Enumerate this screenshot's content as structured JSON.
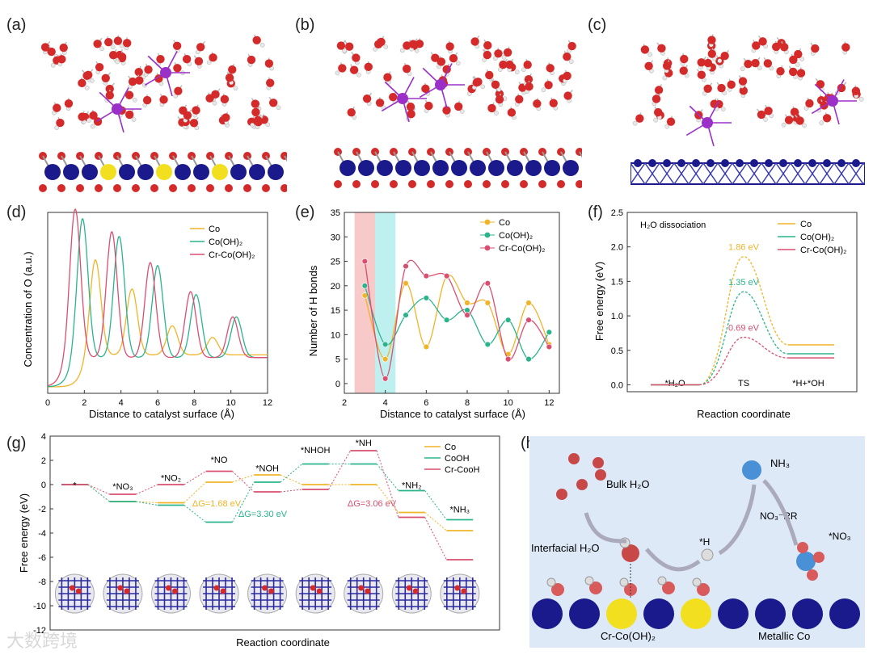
{
  "panels": {
    "a": {
      "label": "(a)"
    },
    "b": {
      "label": "(b)"
    },
    "c": {
      "label": "(c)"
    },
    "d": {
      "label": "(d)"
    },
    "e": {
      "label": "(e)"
    },
    "f": {
      "label": "(f)"
    },
    "g": {
      "label": "(g)"
    },
    "h": {
      "label": "(h)"
    }
  },
  "colors": {
    "co": "#f0b429",
    "coOH": "#2bb48c",
    "crcoOH": "#d94f70",
    "water_O": "#d42a2a",
    "cr_atom": "#9b30c8",
    "co_atom": "#1a1a8c",
    "yellow": "#f2e020",
    "bg_h": "#dde9f7"
  },
  "chart_data": [
    {
      "id": "d",
      "type": "line",
      "xlabel": "Distance to catalyst surface (Å)",
      "ylabel": "Concentration of O (a.u.)",
      "xlim": [
        0,
        12
      ],
      "xticks": [
        0,
        2,
        4,
        6,
        8,
        10,
        12
      ],
      "legend": "top-right",
      "series": [
        {
          "name": "Co",
          "peaks": [
            [
              2.6,
              1.0
            ],
            [
              4.6,
              0.68
            ],
            [
              6.8,
              0.3
            ],
            [
              9.0,
              0.18
            ]
          ],
          "base": 0.6
        },
        {
          "name": "Co(OH)₂",
          "peaks": [
            [
              1.9,
              1.45
            ],
            [
              3.9,
              1.25
            ],
            [
              6.0,
              0.95
            ],
            [
              8.1,
              0.65
            ],
            [
              10.3,
              0.42
            ]
          ],
          "base": 0.55
        },
        {
          "name": "Cr-Co(OH)₂",
          "peaks": [
            [
              1.5,
              1.55
            ],
            [
              3.5,
              1.3
            ],
            [
              5.6,
              0.98
            ],
            [
              7.8,
              0.68
            ],
            [
              10.1,
              0.42
            ]
          ],
          "base": 0.55
        }
      ]
    },
    {
      "id": "e",
      "type": "scatter",
      "xlabel": "Distance to catalyst surface (Å)",
      "ylabel": "Number of H bonds",
      "xlim": [
        2,
        12.5
      ],
      "ylim": [
        -2,
        35
      ],
      "xticks": [
        2,
        4,
        6,
        8,
        10,
        12
      ],
      "yticks": [
        0,
        5,
        10,
        15,
        20,
        25,
        30,
        35
      ],
      "bands": [
        {
          "from": 2.5,
          "to": 3.5,
          "color": "#f7c9c9"
        },
        {
          "from": 3.5,
          "to": 4.5,
          "color": "#bff0f0"
        }
      ],
      "legend": "top-right",
      "series": [
        {
          "name": "Co",
          "x": [
            3,
            4,
            5,
            6,
            7,
            8,
            9,
            10,
            11,
            12
          ],
          "y": [
            18,
            5,
            20.5,
            7.5,
            22,
            16.5,
            16.5,
            6,
            16.5,
            8
          ]
        },
        {
          "name": "Co(OH)₂",
          "x": [
            3,
            4,
            5,
            6,
            7,
            8,
            9,
            10,
            11,
            12
          ],
          "y": [
            20,
            8,
            14,
            17.5,
            13,
            15,
            8,
            13,
            5,
            10.5
          ]
        },
        {
          "name": "Cr-Co(OH)₂",
          "x": [
            3,
            4,
            5,
            6,
            7,
            8,
            9,
            10,
            11,
            12
          ],
          "y": [
            25,
            1,
            24,
            22,
            22,
            14,
            20.5,
            5,
            13,
            7.5
          ]
        }
      ]
    },
    {
      "id": "f",
      "type": "line",
      "annotation": "H₂O dissociation",
      "xlabel": "Reaction coordinate",
      "ylabel": "Free energy (eV)",
      "ylim": [
        -0.1,
        2.5
      ],
      "yticks": [
        "0.0",
        "0.5",
        "1.0",
        "1.5",
        "2.0",
        "2.5"
      ],
      "categories": [
        "*H₂O",
        "TS",
        "*H+*OH"
      ],
      "legend": "top-right",
      "series": [
        {
          "name": "Co",
          "values": [
            0,
            1.86,
            0.58
          ],
          "label": "1.86 eV"
        },
        {
          "name": "Co(OH)₂",
          "values": [
            0,
            1.35,
            0.45
          ],
          "label": "1.35 eV"
        },
        {
          "name": "Cr-Co(OH)₂",
          "values": [
            0,
            0.69,
            0.39
          ],
          "label": "0.69 eV"
        }
      ]
    },
    {
      "id": "g",
      "type": "line",
      "xlabel": "Reaction coordinate",
      "ylabel": "Free energy (eV)",
      "ylim": [
        -12,
        4
      ],
      "yticks": [
        -12,
        -10,
        -8,
        -6,
        -4,
        -2,
        0,
        2,
        4
      ],
      "categories": [
        "*",
        "*NO₃",
        "*NO₂",
        "*NO",
        "*NOH",
        "*NHOH",
        "*NH",
        "*NH₂",
        "*NH₃"
      ],
      "legend": "top-right",
      "series": [
        {
          "name": "Co",
          "values": [
            0,
            -1.4,
            -1.5,
            0.2,
            0.8,
            0,
            0,
            -2.3,
            -3.8
          ]
        },
        {
          "name": "CoOH",
          "values": [
            0,
            -1.4,
            -1.7,
            -3.1,
            0.2,
            1.7,
            1.7,
            -0.5,
            -2.9
          ]
        },
        {
          "name": "Cr-CooH",
          "values": [
            0,
            -0.8,
            0,
            1.1,
            -0.6,
            -0.4,
            2.8,
            -2.7,
            -6.2
          ]
        }
      ],
      "annotations": [
        "ΔG=1.68 eV",
        "ΔG=3.30 eV",
        "ΔG=3.06 eV"
      ]
    }
  ],
  "scheme_h": {
    "bulk": "Bulk H₂O",
    "interfacial": "Interfacial H₂O",
    "h": "*H",
    "nh3": "NH₃",
    "rr": "NO₃⁻RR",
    "no3": "*NO₃",
    "substrate": "Cr-Co(OH)₂",
    "metal": "Metallic Co"
  },
  "watermark": "大数跨境"
}
